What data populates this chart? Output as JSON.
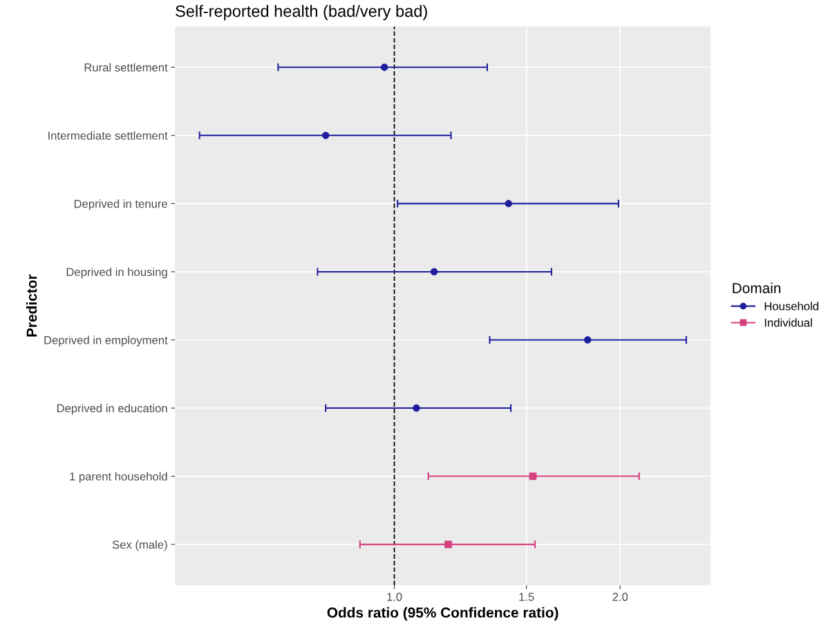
{
  "chart_data": {
    "type": "scatter",
    "orientation": "horizontal",
    "title": "Self-reported health (bad/very bad)",
    "xlabel": "Odds ratio (95% Confidence ratio)",
    "ylabel": "Predictor",
    "legend_title": "Domain",
    "categories": [
      "Rural settlement",
      "Intermediate settlement",
      "Deprived in tenure",
      "Deprived in housing",
      "Deprived in employment",
      "Deprived in education",
      "1 parent household",
      "Sex (male)"
    ],
    "series": [
      {
        "name": "Household",
        "color": "#1f1f9e",
        "marker": "circle",
        "values": [
          0.97,
          0.81,
          1.42,
          1.13,
          1.81,
          1.07,
          null,
          null
        ],
        "errors": [
          [
            0.7,
            1.33
          ],
          [
            0.55,
            1.19
          ],
          [
            1.01,
            1.99
          ],
          [
            0.79,
            1.62
          ],
          [
            1.34,
            2.45
          ],
          [
            0.81,
            1.43
          ],
          null,
          null
        ]
      },
      {
        "name": "Individual",
        "color": "#d6407f",
        "marker": "square",
        "values": [
          null,
          null,
          null,
          null,
          null,
          null,
          1.53,
          1.18
        ],
        "errors": [
          null,
          null,
          null,
          null,
          null,
          null,
          [
            1.11,
            2.12
          ],
          [
            0.9,
            1.54
          ]
        ]
      }
    ],
    "log": "x",
    "xlim": [
      0.51,
      2.64
    ],
    "xticks": [
      {
        "value": 1,
        "label": "1.0"
      },
      1.5,
      {
        "value": 2,
        "label": "2.0"
      }
    ],
    "ref_lines": [
      {
        "axis": "x",
        "value": 1,
        "color": "#000000",
        "line_style": "dashed"
      }
    ],
    "grid": true,
    "legend": "right"
  }
}
